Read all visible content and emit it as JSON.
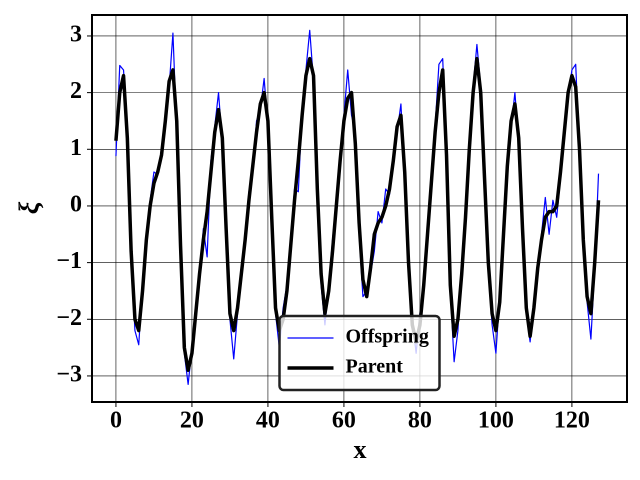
{
  "chart_data": {
    "type": "line",
    "xlabel": "x",
    "ylabel": "ξ",
    "x": [
      0,
      1,
      2,
      3,
      4,
      5,
      6,
      7,
      8,
      9,
      10,
      11,
      12,
      13,
      14,
      15,
      16,
      17,
      18,
      19,
      20,
      21,
      22,
      23,
      24,
      25,
      26,
      27,
      28,
      29,
      30,
      31,
      32,
      33,
      34,
      35,
      36,
      37,
      38,
      39,
      40,
      41,
      42,
      43,
      44,
      45,
      46,
      47,
      48,
      49,
      50,
      51,
      52,
      53,
      54,
      55,
      56,
      57,
      58,
      59,
      60,
      61,
      62,
      63,
      64,
      65,
      66,
      67,
      68,
      69,
      70,
      71,
      72,
      73,
      74,
      75,
      76,
      77,
      78,
      79,
      80,
      81,
      82,
      83,
      84,
      85,
      86,
      87,
      88,
      89,
      90,
      91,
      92,
      93,
      94,
      95,
      96,
      97,
      98,
      99,
      100,
      101,
      102,
      103,
      104,
      105,
      106,
      107,
      108,
      109,
      110,
      111,
      112,
      113,
      114,
      115,
      116,
      117,
      118,
      119,
      120,
      121,
      122,
      123,
      124,
      125,
      126,
      127
    ],
    "series": [
      {
        "name": "Offspring",
        "color": "#0000ff",
        "width": 1.2,
        "values": [
          0.88,
          2.48,
          2.4,
          1.3,
          -0.9,
          -2.2,
          -2.45,
          -1.4,
          -0.5,
          0.1,
          0.6,
          0.55,
          1.0,
          1.6,
          2.1,
          3.05,
          1.3,
          -0.9,
          -2.6,
          -3.15,
          -2.5,
          -1.8,
          -1.3,
          -0.4,
          -0.9,
          0.8,
          1.4,
          2.0,
          1.1,
          -0.6,
          -2.0,
          -2.7,
          -1.9,
          -1.1,
          -0.5,
          0.25,
          0.6,
          1.5,
          1.7,
          2.25,
          1.4,
          -0.4,
          -1.9,
          -2.5,
          -1.8,
          -1.4,
          -0.6,
          0.3,
          0.25,
          1.7,
          2.4,
          3.1,
          2.2,
          0.2,
          -1.4,
          -2.1,
          -1.4,
          -0.6,
          0.1,
          0.9,
          1.6,
          2.4,
          1.6,
          1.3,
          -0.5,
          -1.6,
          -1.5,
          -1.2,
          -0.8,
          -0.1,
          -0.3,
          0.3,
          0.2,
          0.9,
          1.3,
          1.8,
          0.5,
          -1.1,
          -2.0,
          -2.6,
          -1.9,
          -1.5,
          -0.4,
          0.3,
          1.4,
          2.5,
          2.6,
          0.8,
          -1.5,
          -2.75,
          -2.2,
          -1.1,
          -0.3,
          1.1,
          2.1,
          2.85,
          2.1,
          0.4,
          -1.1,
          -2.1,
          -2.6,
          -1.6,
          -0.6,
          0.8,
          1.4,
          2.0,
          1.1,
          -0.5,
          -1.9,
          -2.4,
          -1.7,
          -1.2,
          -0.5,
          0.15,
          -0.5,
          0.1,
          -0.2,
          0.5,
          1.4,
          1.9,
          2.4,
          2.5,
          0.9,
          -0.8,
          -1.7,
          -2.35,
          -1.1,
          0.57
        ]
      },
      {
        "name": "Parent",
        "color": "#000000",
        "width": 3.5,
        "values": [
          1.15,
          2.0,
          2.3,
          1.2,
          -0.8,
          -2.0,
          -2.2,
          -1.5,
          -0.6,
          0.0,
          0.4,
          0.6,
          0.9,
          1.5,
          2.2,
          2.4,
          1.5,
          -0.7,
          -2.5,
          -2.9,
          -2.6,
          -1.9,
          -1.2,
          -0.6,
          -0.1,
          0.6,
          1.3,
          1.7,
          1.2,
          -0.4,
          -1.9,
          -2.2,
          -1.8,
          -1.2,
          -0.6,
          0.1,
          0.7,
          1.3,
          1.8,
          2.0,
          1.5,
          -0.2,
          -1.8,
          -2.2,
          -2.0,
          -1.5,
          -0.7,
          0.1,
          0.8,
          1.6,
          2.3,
          2.6,
          2.3,
          0.3,
          -1.2,
          -1.9,
          -1.5,
          -0.8,
          0.0,
          0.8,
          1.5,
          1.9,
          2.0,
          1.1,
          -0.3,
          -1.3,
          -1.6,
          -1.1,
          -0.5,
          -0.3,
          -0.2,
          0.0,
          0.3,
          0.8,
          1.4,
          1.6,
          0.6,
          -1.0,
          -2.1,
          -2.4,
          -2.1,
          -1.4,
          -0.5,
          0.4,
          1.3,
          2.0,
          2.4,
          0.9,
          -1.4,
          -2.3,
          -2.0,
          -1.2,
          -0.2,
          1.0,
          2.0,
          2.6,
          2.0,
          0.5,
          -1.0,
          -1.9,
          -2.2,
          -1.7,
          -0.5,
          0.7,
          1.5,
          1.8,
          1.2,
          -0.4,
          -1.8,
          -2.3,
          -1.8,
          -1.1,
          -0.6,
          -0.2,
          -0.1,
          -0.1,
          0.0,
          0.6,
          1.3,
          2.0,
          2.3,
          2.1,
          1.0,
          -0.6,
          -1.6,
          -1.9,
          -1.0,
          0.1
        ]
      }
    ],
    "xlim": [
      -6.3,
      134.5
    ],
    "ylim": [
      -3.46,
      3.37
    ],
    "xticks": [
      0,
      20,
      40,
      60,
      80,
      100,
      120
    ],
    "yticks": [
      {
        "value": -3,
        "label": "−3"
      },
      {
        "value": -2,
        "label": "−2"
      },
      {
        "value": -1,
        "label": "−1"
      },
      0,
      1,
      2,
      3
    ],
    "grid": true,
    "legend": "lower center"
  }
}
